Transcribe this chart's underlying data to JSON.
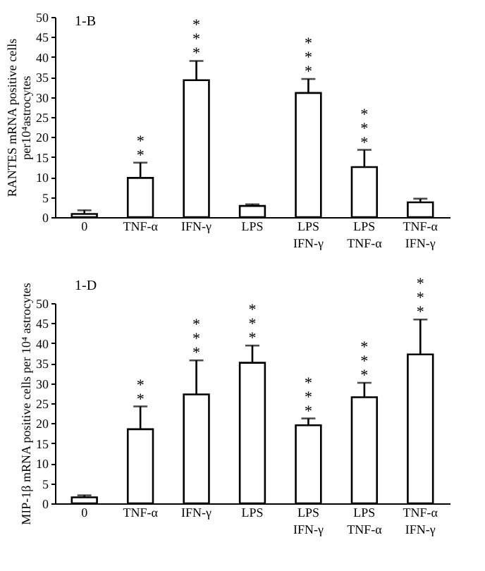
{
  "chart_data": [
    {
      "type": "bar",
      "title": "1-B",
      "ylabel": "RANTES mRNA positive cells\nper10⁴astrocytes",
      "categories": [
        "0",
        "TNF-α",
        "IFN-γ",
        "LPS",
        "LPS\nIFN-γ",
        "LPS\nTNF-α",
        "TNF-α\nIFN-γ"
      ],
      "values": [
        0.8,
        9.8,
        34.2,
        2.8,
        31,
        12.5,
        3.7
      ],
      "errors": [
        [
          0.8,
          1.7
        ],
        [
          9.8,
          13.6
        ],
        [
          34.2,
          39
        ],
        [
          2.8,
          3.2
        ],
        [
          31,
          34.5
        ],
        [
          12.5,
          16.8
        ],
        [
          3.7,
          4.6
        ]
      ],
      "color": "#ffffff",
      "ylim": [
        0,
        50
      ],
      "yticks": [
        0,
        5,
        10,
        15,
        20,
        25,
        30,
        35,
        40,
        45,
        50
      ],
      "grid": false,
      "value_labels": [
        null,
        "**",
        "***",
        null,
        "***",
        "***",
        null
      ]
    },
    {
      "type": "bar",
      "title": "1-D",
      "ylabel": "MIP-1β mRNA positive cells per 10⁴ astrocytes",
      "categories": [
        "0",
        "TNF-α",
        "IFN-γ",
        "LPS",
        "LPS\nIFN-γ",
        "LPS\nTNF-α",
        "TNF-α\nIFN-γ"
      ],
      "values": [
        1.5,
        18.5,
        27.2,
        35.1,
        19.5,
        26.5,
        37.2
      ],
      "errors": [
        [
          1.5,
          2
        ],
        [
          18.5,
          24.2
        ],
        [
          27.2,
          35.7
        ],
        [
          35.1,
          39.4
        ],
        [
          19.5,
          21.2
        ],
        [
          26.5,
          30.1
        ],
        [
          37.2,
          45.9
        ]
      ],
      "color": "#ffffff",
      "ylim": [
        0,
        50
      ],
      "yticks": [
        0,
        5,
        10,
        15,
        20,
        25,
        30,
        35,
        40,
        45,
        50
      ],
      "grid": false,
      "value_labels": [
        null,
        "**",
        "***",
        "***",
        "***",
        "***",
        "***"
      ]
    }
  ]
}
